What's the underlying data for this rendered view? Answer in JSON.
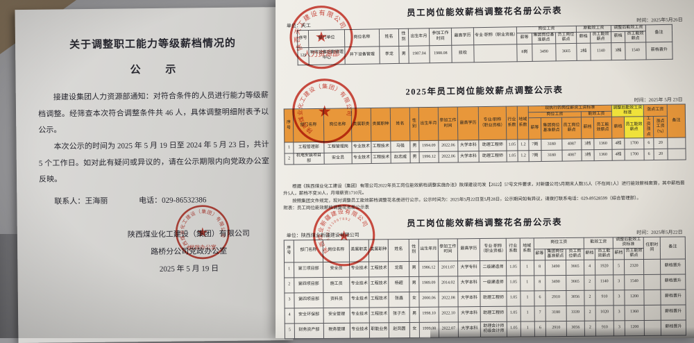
{
  "colors": {
    "seal_red": "#c13328",
    "header_orange": "#e8973a",
    "highlight_yellow": "#efe13a"
  },
  "notice": {
    "title_line1": "关于调整职工能力等级薪档情况的",
    "title_line2": "公 示",
    "para1": "接建设集团人力资源部通知：对符合条件的人员进行能力等级薪档调整。经筛查本次符合调整条件共 46 人，具体调整明细附表予以公示。",
    "para2": "本次公示的时间为 2025 年 5 月 19 日至 2024 年 5 月 23 日，共计 5 个工作日。如对此有疑问或异议的，请在公示期限内向党政办公室反映。",
    "contact": "联系人：王海丽",
    "phone": "电话：029-86532386",
    "sign_company": "陕西煤业化工建设（集团）有限公司",
    "sign_dept": "路桥分公司党政办公室",
    "sign_date": "2025 年 5 月 19 日"
  },
  "seals": {
    "notice_ring": "陕西煤业化工建设（集团）有限公司",
    "notice_banner": "党政办公室",
    "t1_ring": "陕西天工建设有限公司",
    "t1_banner": "人力资源部",
    "t2_ring": "陕西煤业化工建设（集团）有限公司",
    "t3_ring": "陕西煤业新疆建设有限公司",
    "t3_number": "6102015067892"
  },
  "table1": {
    "title": "员工岗位能效薪档调整花名册公示表",
    "unit": "单位：天工",
    "date": "时间：2025年5月26日",
    "h": {
      "seq": "序号",
      "dept": "部门单位",
      "post": "岗位名称",
      "name": "姓名",
      "sex": "性别",
      "birth": "出生年月",
      "start": "参加工作时间",
      "edu": "最高学历",
      "major": "专业·职称（职业资格）",
      "g_post": "岗位工资",
      "g_old": "原能效工资",
      "g_new": "调整后能效工资",
      "grade": "薪等",
      "base": "集团岗位基准薪点",
      "point": "员工岗位薪点",
      "tier": "薪档",
      "eff": "员工能效薪点",
      "remark": "备注"
    },
    "rows": [
      [
        "129",
        "物资设备后勤管理中心",
        "井下设备管理",
        "李龙",
        "男",
        "1987.04",
        "1988.08",
        "技校",
        "",
        "8岗",
        "3490",
        "3665",
        "2档",
        "1140",
        "3档",
        "1540",
        "薪档晋升"
      ]
    ]
  },
  "table2": {
    "title": "2025年员工岗位能效薪点调整公示表",
    "date": "时间：2025年 5月 23日",
    "h": {
      "seq": "序号",
      "dept": "部门名称",
      "post": "岗位名称",
      "jclass": "类属职类",
      "jtype": "类属职种",
      "name": "姓名",
      "sex": "性别",
      "birth": "出生年月",
      "start": "参加工作时间",
      "edu": "最高学历",
      "major": "专业/职称（职业资格）",
      "ind": "行业系数",
      "reg": "地域系数",
      "g_cur": "现执行的岗位薪资工资标准",
      "g_post": "岗位工资",
      "g_eff": "能效工资",
      "g_new": "调整后能效工资标准",
      "g_raise": "涨点工资",
      "grade": "薪等",
      "base": "集团岗位基准薪点",
      "point": "员工岗位薪点",
      "tier": "薪档",
      "eff": "员工能效薪点",
      "rp": "工资涨点",
      "rpct": "涨点工资（%）",
      "remark": "备注"
    },
    "rows": [
      [
        "1",
        "工程管理部",
        "工程管理岗",
        "专业技术",
        "工程技术",
        "马强",
        "男",
        "1994.09",
        "2022.06",
        "大学本科",
        "助理工程师",
        "1.05",
        "1.2",
        "7岗",
        "3180",
        "4087",
        "3档",
        "1360",
        "4档",
        "1700",
        "6",
        "20",
        ""
      ],
      [
        "2",
        "机电安装项目部",
        "安全员",
        "专业技术",
        "工程技术",
        "赵志威",
        "男",
        "1996.12",
        "2022.06",
        "大学本科",
        "助理工程师",
        "1.05",
        "1.2",
        "7岗",
        "3180",
        "4087",
        "3档",
        "1360",
        "4档",
        "1700",
        "6",
        "20",
        ""
      ]
    ]
  },
  "table3": {
    "intro_p1": "根据《陕西煤业化工建设（集团）有限公司2022年员工岗位能效薪档调整实施办法》陕煤建设司发【2022】57号文件要求，对新疆公司5月期末人数35人（不在岗1人）进行能效薪档套算，其中薪档晋升5人，薪档不变30人，月增薪资1710元。",
    "intro_p2": "按照集团文件规定，现对调整员工能效薪档调整花名册进行公示，公示时间为：2025年5月22日至5月28日，公示期间如有异议，请拨打联系电话：029-89528599（综合管理部）。",
    "intro_p3": "附表：员工岗位能效薪档调整花名册公示表",
    "title": "员工岗位能效薪档调整花名册公示表",
    "unit": "单位：陕西煤业新疆建设有限公司",
    "date": "时间：2025年5月22日",
    "h": {
      "seq": "序号",
      "dept": "部门名称",
      "post": "岗位名称",
      "jclass": "类属职类",
      "jtype": "类属职种",
      "name": "姓名",
      "sex": "性别",
      "birth": "出生年月",
      "start": "参加工作时间",
      "edu": "最高学历",
      "major": "专业·职称（职业资格）",
      "ind": "行业系数",
      "reg": "地域系数",
      "g_post": "岗位工资",
      "g_eff": "能效工资",
      "g_new": "调整后能效工资标准",
      "grade": "薪等",
      "base": "集团岗位基准薪点",
      "point": "员工岗位薪点",
      "tier": "薪档",
      "eff": "员工能效薪点",
      "tenure": "任职时间",
      "remark": "备注"
    },
    "rows": [
      [
        "1",
        "第三项目部",
        "安全员",
        "专业技术",
        "工程技术",
        "龙南",
        "男",
        "1986.12",
        "2011.07",
        "大学专科",
        "二级建造师",
        "1.05",
        "1",
        "8",
        "3490",
        "3665",
        "4",
        "1920",
        "5",
        "2320",
        "",
        "薪档晋升"
      ],
      [
        "2",
        "第四项目部",
        "施工员",
        "专业技术",
        "工程技术",
        "杨超",
        "男",
        "1989.09",
        "2014.02",
        "大学本科",
        "一级建造师",
        "1.05",
        "1",
        "8",
        "3490",
        "3665",
        "2",
        "1140",
        "3",
        "1540",
        "",
        "薪档晋升"
      ],
      [
        "3",
        "第四项目部",
        "资料员",
        "专业技术",
        "工程技术",
        "张鑫",
        "女",
        "2000.06",
        "2022.08",
        "大学本科",
        "助理工程师",
        "1.05",
        "1",
        "6",
        "2910",
        "3056",
        "2",
        "910",
        "3",
        "1200",
        "",
        "薪档晋升"
      ],
      [
        "4",
        "安全环保部",
        "安全管理",
        "专业技术",
        "工程技术",
        "张子杰",
        "男",
        "1998.10",
        "2022.10",
        "大学本科",
        "助理工程师",
        "1.05",
        "1",
        "7",
        "3180",
        "3339",
        "2",
        "1020",
        "3",
        "1360",
        "",
        "薪档晋升"
      ],
      [
        "5",
        "财务资产部",
        "税务管理",
        "专业技术",
        "职能业务",
        "赵凤圆",
        "女",
        "1999.08",
        "2022.07",
        "大学本科",
        "助理会计师初级会计师",
        "1.05",
        "1",
        "6",
        "2910",
        "3056",
        "2",
        "910",
        "3",
        "1200",
        "",
        "薪档晋升"
      ]
    ]
  }
}
